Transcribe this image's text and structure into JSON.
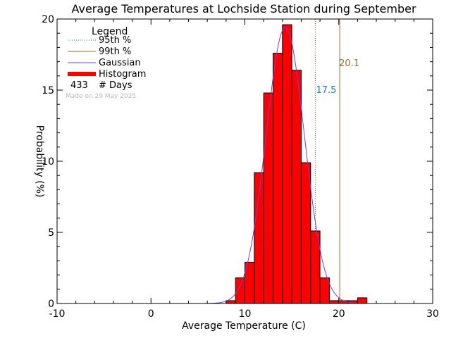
{
  "chart_data": {
    "type": "bar",
    "title": "Average Temperatures at Lochside Station during September",
    "xlabel": "Average Temperature (C)",
    "ylabel": "Probability (%)",
    "xlim": [
      -10,
      30
    ],
    "ylim": [
      0,
      20
    ],
    "xticks": [
      -10,
      0,
      10,
      20,
      30
    ],
    "yticks": [
      0,
      5,
      10,
      15,
      20
    ],
    "bin_edges": [
      8,
      9,
      10,
      11,
      12,
      13,
      14,
      15,
      16,
      17,
      18,
      19,
      20,
      21,
      22,
      23
    ],
    "histogram": [
      0.2,
      1.8,
      2.9,
      9.2,
      14.8,
      17.6,
      19.6,
      16.4,
      9.9,
      5.1,
      1.8,
      0.2,
      0.2,
      0.2,
      0.4
    ],
    "gaussian": {
      "mean": 14.3,
      "peak": 19.4,
      "sigma": 2.05
    },
    "p95": {
      "value": 17.5,
      "label": "17.5",
      "color": "#1a7fbf"
    },
    "p99": {
      "value": 20.1,
      "label": "20.1",
      "color": "#9a6a2a"
    },
    "legend": {
      "title": "Legend",
      "items": [
        {
          "label": "95th %",
          "style": "dotted",
          "color": "#1a7fbf"
        },
        {
          "label": "99th %",
          "style": "line",
          "color": "#9a6a2a"
        },
        {
          "label": "Gaussian",
          "style": "line",
          "color": "#7a3fcf"
        },
        {
          "label": "Histogram",
          "style": "thick",
          "color": "#ff0000"
        }
      ],
      "days_count": "433",
      "days_label": "# Days",
      "made_on": "Made on 29 May 2025",
      "placement": "top-left"
    },
    "colors": {
      "bar_fill": "#ff0000",
      "bar_edge": "#000000",
      "gaussian": "#7a3fcf",
      "axis": "#000000"
    }
  }
}
